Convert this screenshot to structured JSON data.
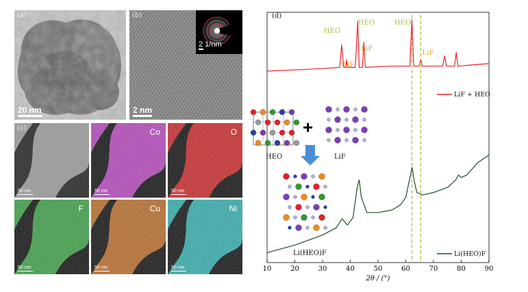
{
  "panel_a": {
    "label": "(a)",
    "scale_bar": "20 nm"
  },
  "panel_b": {
    "label": "(b)",
    "scale_bar": "2 nm",
    "inset_scale": "2 1/nm"
  },
  "panel_c": {
    "label": "(c)",
    "maps": [
      {
        "element": "",
        "scale": "50 nm",
        "color": "#9a9a9a"
      },
      {
        "element": "Co",
        "scale": "50 nm",
        "color": "#b03ab8"
      },
      {
        "element": "O",
        "scale": "50 nm",
        "color": "#c8191b"
      },
      {
        "element": "F",
        "scale": "50 nm",
        "color": "#2f9a3a"
      },
      {
        "element": "Cu",
        "scale": "50 nm",
        "color": "#b5621c"
      },
      {
        "element": "Ni",
        "scale": "50 nm",
        "color": "#26a8a8"
      }
    ]
  },
  "panel_d": {
    "label": "(d)",
    "scheme": {
      "hea_label": "HEO",
      "lif_label": "LiF",
      "product_label": "Li(HEO)F",
      "plus": "+"
    },
    "hea_color": "#a8c23a",
    "lif_color": "#e6a526"
  },
  "chart_data": {
    "type": "line",
    "xlabel": "2θ / (°)",
    "xlim": [
      10,
      90
    ],
    "x_ticks": [
      10,
      20,
      30,
      40,
      50,
      60,
      70,
      80,
      90
    ],
    "series": [
      {
        "name": "LiF + HEO",
        "color": "#e8212b",
        "x": [
          10,
          20,
          30,
          36.2,
          36.9,
          37.6,
          38.4,
          38.7,
          39.0,
          41.8,
          42.7,
          43.2,
          44.4,
          44.9,
          45.4,
          55,
          61.5,
          62.2,
          62.9,
          64.8,
          65.4,
          66.0,
          73.3,
          74.0,
          74.7,
          77.6,
          78.2,
          78.8,
          84,
          90
        ],
        "y": [
          0.765,
          0.77,
          0.775,
          0.78,
          0.87,
          0.78,
          0.78,
          0.81,
          0.78,
          0.78,
          0.965,
          0.78,
          0.78,
          0.88,
          0.78,
          0.785,
          0.785,
          0.97,
          0.785,
          0.785,
          0.81,
          0.785,
          0.785,
          0.825,
          0.785,
          0.785,
          0.84,
          0.785,
          0.79,
          0.795
        ]
      },
      {
        "name": "Li(HEO)F",
        "color": "#1e4d25",
        "x": [
          10,
          20,
          25,
          30,
          35,
          37,
          39,
          41,
          42.5,
          43.2,
          44,
          46,
          50,
          55,
          58,
          60,
          61.5,
          62.3,
          63,
          64,
          66,
          70,
          75,
          78,
          79,
          80,
          82,
          86,
          90
        ],
        "y": [
          0.04,
          0.07,
          0.09,
          0.11,
          0.14,
          0.175,
          0.15,
          0.18,
          0.3,
          0.33,
          0.26,
          0.2,
          0.2,
          0.21,
          0.23,
          0.26,
          0.34,
          0.38,
          0.33,
          0.28,
          0.27,
          0.28,
          0.3,
          0.33,
          0.35,
          0.34,
          0.35,
          0.4,
          0.43
        ]
      }
    ],
    "annotations": [
      {
        "text": "HEO",
        "kind": "heo"
      },
      {
        "text": "HEO",
        "kind": "heo"
      },
      {
        "text": "HEO",
        "kind": "heo"
      },
      {
        "text": "LiF",
        "kind": "lif"
      },
      {
        "text": "LiF",
        "kind": "lif"
      },
      {
        "text": "LiF",
        "kind": "lif"
      }
    ],
    "reference_lines": [
      62.2,
      65.4
    ],
    "legend_position": "right"
  }
}
